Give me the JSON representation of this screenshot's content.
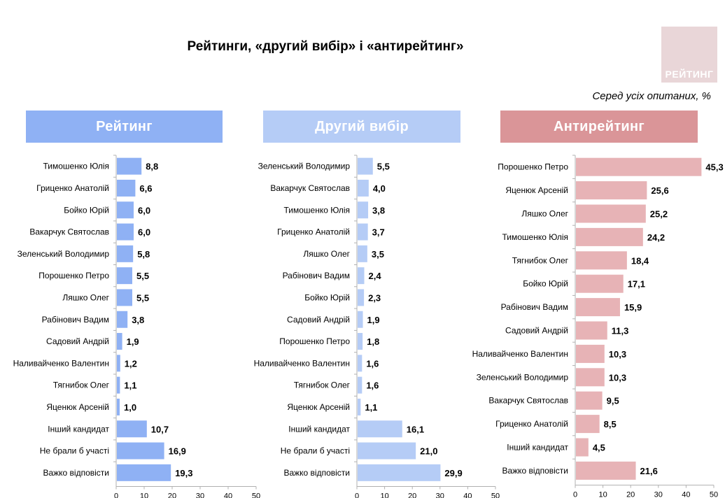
{
  "header": {
    "title": "Рейтинги, «другий вибір» і «антирейтинг»",
    "subtitle": "Серед усіх опитаних, %",
    "logo_text": "РЕЙТИНГ"
  },
  "colors": {
    "rating": "#8fb1f4",
    "second": "#b5ccf6",
    "anti": "#e7b3b6",
    "rating_header": "#8fb1f4",
    "second_header": "#b5ccf6",
    "anti_header": "#da9598",
    "logo_bg": "#e9d6d8"
  },
  "chart_data": [
    {
      "type": "bar",
      "orientation": "horizontal",
      "title": "Рейтинг",
      "xlim": [
        0,
        50
      ],
      "xticks": [
        "0",
        "10",
        "20",
        "30",
        "40",
        "50"
      ],
      "categories": [
        "Тимошенко Юлія",
        "Гриценко Анатолій",
        "Бойко Юрій",
        "Вакарчук Святослав",
        "Зеленський Володимир",
        "Порошенко Петро",
        "Ляшко Олег",
        "Рабінович Вадим",
        "Садовий Андрій",
        "Наливайченко Валентин",
        "Тягнибок Олег",
        "Яценюк Арсеній",
        "Інший кандидат",
        "Не брали б участі",
        "Важко відповісти"
      ],
      "values": [
        8.8,
        6.6,
        6.0,
        6.0,
        5.8,
        5.5,
        5.5,
        3.8,
        1.9,
        1.2,
        1.1,
        1.0,
        10.7,
        16.9,
        19.3
      ],
      "labels": [
        "8,8",
        "6,6",
        "6,0",
        "6,0",
        "5,8",
        "5,5",
        "5,5",
        "3,8",
        "1,9",
        "1,2",
        "1,1",
        "1,0",
        "10,7",
        "16,9",
        "19,3"
      ]
    },
    {
      "type": "bar",
      "orientation": "horizontal",
      "title": "Другий вибір",
      "xlim": [
        0,
        50
      ],
      "xticks": [
        "0",
        "10",
        "20",
        "30",
        "40",
        "50"
      ],
      "categories": [
        "Зеленський Володимир",
        "Вакарчук Святослав",
        "Тимошенко Юлія",
        "Гриценко Анатолій",
        "Ляшко Олег",
        "Рабінович Вадим",
        "Бойко Юрій",
        "Садовий Андрій",
        "Порошенко Петро",
        "Наливайченко Валентин",
        "Тягнибок Олег",
        "Яценюк Арсеній",
        "Інший кандидат",
        "Не брали б участі",
        "Важко відповісти"
      ],
      "values": [
        5.5,
        4.0,
        3.8,
        3.7,
        3.5,
        2.4,
        2.3,
        1.9,
        1.8,
        1.6,
        1.6,
        1.1,
        16.1,
        21.0,
        29.9
      ],
      "labels": [
        "5,5",
        "4,0",
        "3,8",
        "3,7",
        "3,5",
        "2,4",
        "2,3",
        "1,9",
        "1,8",
        "1,6",
        "1,6",
        "1,1",
        "16,1",
        "21,0",
        "29,9"
      ]
    },
    {
      "type": "bar",
      "orientation": "horizontal",
      "title": "Антирейтинг",
      "xlim": [
        0,
        50
      ],
      "xticks": [
        "0",
        "10",
        "20",
        "30",
        "40",
        "50"
      ],
      "categories": [
        "Порошенко Петро",
        "Яценюк Арсеній",
        "Ляшко Олег",
        "Тимошенко Юлія",
        "Тягнибок Олег",
        "Бойко Юрій",
        "Рабінович Вадим",
        "Садовий Андрій",
        "Наливайченко Валентин",
        "Зеленський Володимир",
        "Вакарчук Святослав",
        "Гриценко Анатолій",
        "Інший кандидат",
        "Важко відповісти"
      ],
      "values": [
        45.3,
        25.6,
        25.2,
        24.2,
        18.4,
        17.1,
        15.9,
        11.3,
        10.3,
        10.3,
        9.5,
        8.5,
        4.5,
        21.6
      ],
      "labels": [
        "45,3",
        "25,6",
        "25,2",
        "24,2",
        "18,4",
        "17,1",
        "15,9",
        "11,3",
        "10,3",
        "10,3",
        "9,5",
        "8,5",
        "4,5",
        "21,6"
      ]
    }
  ]
}
